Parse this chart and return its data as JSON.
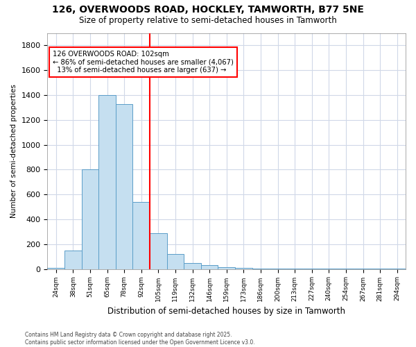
{
  "title_line1": "126, OVERWOODS ROAD, HOCKLEY, TAMWORTH, B77 5NE",
  "title_line2": "Size of property relative to semi-detached houses in Tamworth",
  "xlabel": "Distribution of semi-detached houses by size in Tamworth",
  "ylabel": "Number of semi-detached properties",
  "footnote": "Contains HM Land Registry data © Crown copyright and database right 2025.\nContains public sector information licensed under the Open Government Licence v3.0.",
  "bin_labels": [
    "24sqm",
    "38sqm",
    "51sqm",
    "65sqm",
    "78sqm",
    "92sqm",
    "105sqm",
    "119sqm",
    "132sqm",
    "146sqm",
    "159sqm",
    "173sqm",
    "186sqm",
    "200sqm",
    "213sqm",
    "227sqm",
    "240sqm",
    "254sqm",
    "267sqm",
    "281sqm",
    "294sqm"
  ],
  "bar_values": [
    10,
    150,
    800,
    1400,
    1325,
    540,
    290,
    120,
    50,
    30,
    15,
    10,
    2,
    2,
    2,
    2,
    2,
    2,
    2,
    2,
    5
  ],
  "bar_color": "#c5dff0",
  "bar_edge_color": "#5a9dc8",
  "red_line_bin_index": 6,
  "annotation_title": "126 OVERWOODS ROAD: 102sqm",
  "annotation_line1": "← 86% of semi-detached houses are smaller (4,067)",
  "annotation_line2": "13% of semi-detached houses are larger (637) →",
  "ylim": [
    0,
    1900
  ],
  "yticks": [
    0,
    200,
    400,
    600,
    800,
    1000,
    1200,
    1400,
    1600,
    1800
  ],
  "background_color": "#ffffff",
  "grid_color": "#d0d8e8"
}
